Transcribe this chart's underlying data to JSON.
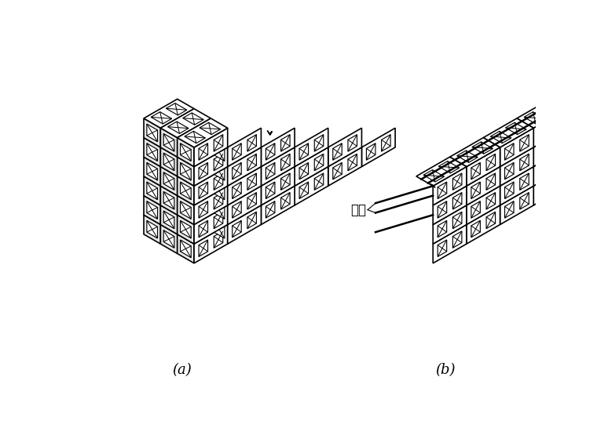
{
  "fig_width": 7.6,
  "fig_height": 5.46,
  "dpi": 100,
  "background_color": "#ffffff",
  "line_color": "#000000",
  "line_width": 1.2,
  "label_a": "(a)",
  "label_b": "(b)",
  "label_gangjin": "钉筋"
}
